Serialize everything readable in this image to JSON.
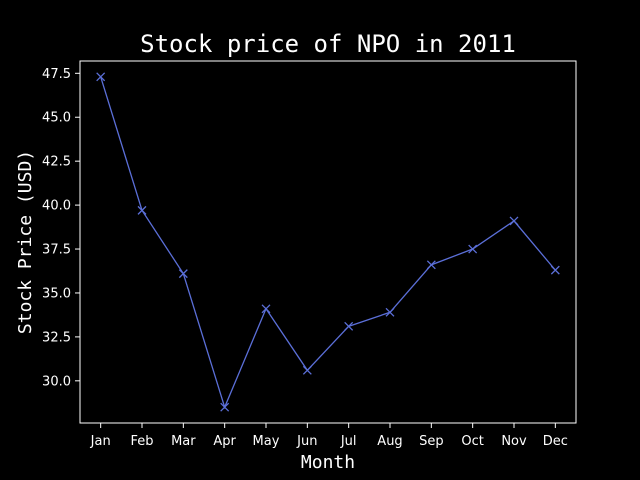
{
  "chart_data": {
    "type": "line",
    "title": "Stock price of NPO in 2011",
    "xlabel": "Month",
    "ylabel": "Stock Price (USD)",
    "categories": [
      "Jan",
      "Feb",
      "Mar",
      "Apr",
      "May",
      "Jun",
      "Jul",
      "Aug",
      "Sep",
      "Oct",
      "Nov",
      "Dec"
    ],
    "series": [
      {
        "values": [
          47.3,
          39.7,
          36.1,
          28.5,
          34.1,
          30.6,
          33.1,
          33.9,
          36.6,
          37.5,
          39.1,
          36.3
        ]
      }
    ],
    "yticks": [
      "30.0",
      "32.5",
      "35.0",
      "37.5",
      "40.0",
      "42.5",
      "45.0",
      "47.5"
    ],
    "ylim": [
      27.6,
      48.2
    ],
    "grid": false,
    "marker": "x",
    "colors": {
      "background": "#000000",
      "axes": "#ffffff",
      "text": "#ffffff",
      "line": "#5b6fd8"
    }
  }
}
